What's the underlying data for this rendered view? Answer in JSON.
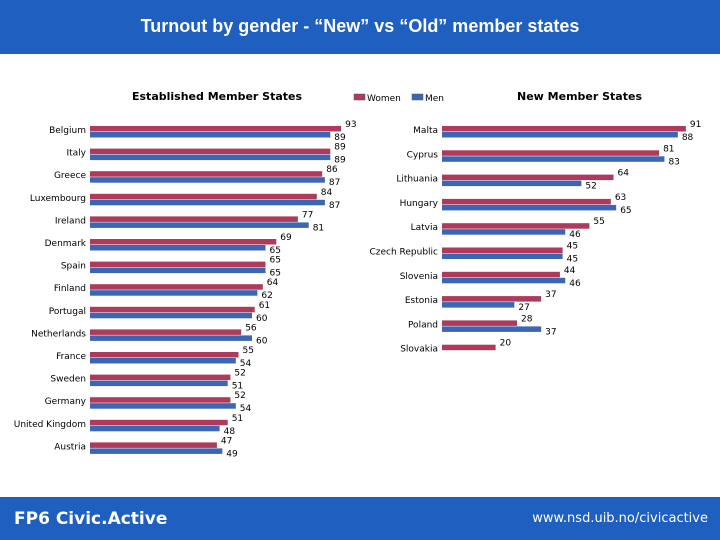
{
  "header": {
    "title": "Turnout by gender - “New” vs “Old” member states"
  },
  "footer": {
    "left": "FP6 Civic.Active",
    "right": "www.nsd.uib.no/civicactive"
  },
  "colors": {
    "banner": "#1f5fbf",
    "women": "#b03a5b",
    "men": "#3a66b5"
  },
  "chart_data": [
    {
      "type": "bar",
      "orientation": "horizontal",
      "title": "Established Member States",
      "legend": [
        "Women",
        "Men"
      ],
      "xlim": [
        0,
        100
      ],
      "categories": [
        "Belgium",
        "Italy",
        "Greece",
        "Luxembourg",
        "Ireland",
        "Denmark",
        "Spain",
        "Finland",
        "Portugal",
        "Netherlands",
        "France",
        "Sweden",
        "Germany",
        "United Kingdom",
        "Austria"
      ],
      "series": [
        {
          "name": "Women",
          "values": [
            93,
            89,
            86,
            84,
            77,
            69,
            65,
            64,
            61,
            56,
            55,
            52,
            52,
            51,
            47
          ]
        },
        {
          "name": "Men",
          "values": [
            89,
            89,
            87,
            87,
            81,
            65,
            65,
            62,
            60,
            60,
            54,
            51,
            54,
            48,
            49
          ]
        }
      ]
    },
    {
      "type": "bar",
      "orientation": "horizontal",
      "title": "New Member States",
      "xlim": [
        0,
        100
      ],
      "categories": [
        "Malta",
        "Cyprus",
        "Lithuania",
        "Hungary",
        "Latvia",
        "Czech Republic",
        "Slovenia",
        "Estonia",
        "Poland",
        "Slovakia"
      ],
      "series": [
        {
          "name": "Women",
          "values": [
            91,
            81,
            64,
            63,
            55,
            45,
            44,
            37,
            28,
            20
          ]
        },
        {
          "name": "Men",
          "values": [
            88,
            83,
            52,
            65,
            46,
            45,
            46,
            27,
            37,
            null
          ]
        }
      ]
    }
  ]
}
